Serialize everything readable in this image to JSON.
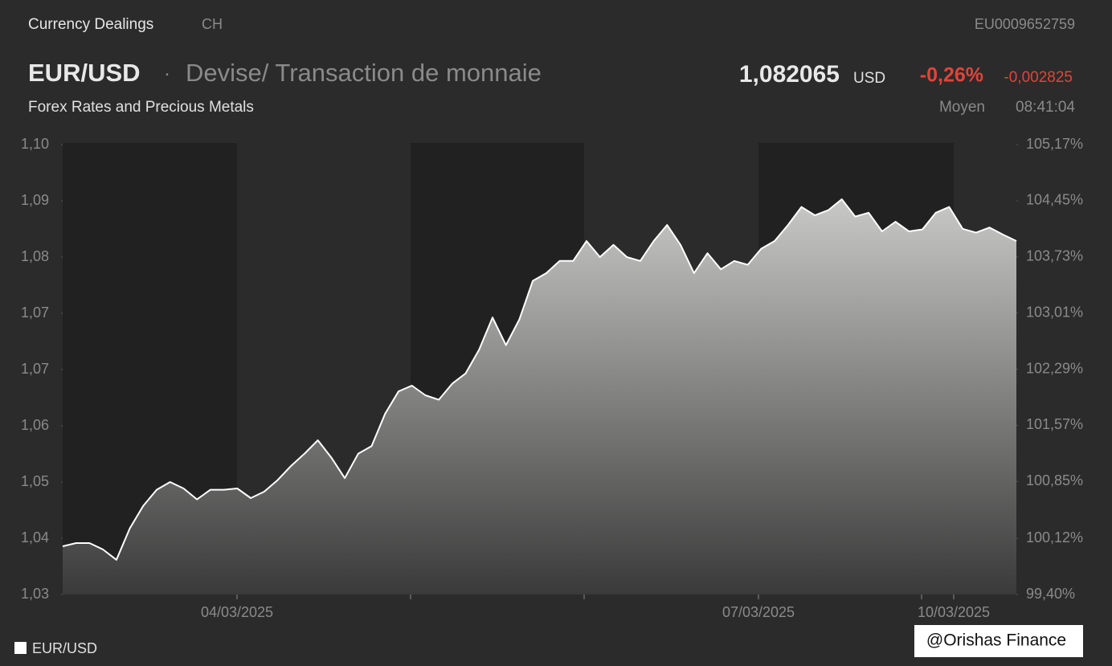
{
  "header": {
    "category": "Currency Dealings",
    "country": "CH",
    "isin": "EU0009652759",
    "symbol": "EUR/USD",
    "separator": "·",
    "description": "Devise/ Transaction de monnaie",
    "price": "1,082065",
    "currency": "USD",
    "change_pct": "-0,26%",
    "change_abs": "-0,002825",
    "market": "Forex Rates and Precious Metals",
    "price_type": "Moyen",
    "time": "08:41:04"
  },
  "watermark": "@Orishas Finance",
  "chart_data": {
    "type": "area",
    "series": [
      {
        "name": "EUR/USD",
        "color": "#ffffff",
        "values": [
          1.0375,
          1.038,
          1.038,
          1.037,
          1.0354,
          1.0403,
          1.0438,
          1.0463,
          1.0475,
          1.0465,
          1.0448,
          1.0463,
          1.0463,
          1.0465,
          1.045,
          1.046,
          1.0478,
          1.05,
          1.0519,
          1.054,
          1.0513,
          1.0481,
          1.0519,
          1.0531,
          1.0581,
          1.0616,
          1.0625,
          1.061,
          1.0603,
          1.0628,
          1.0644,
          1.0681,
          1.0731,
          1.0688,
          1.0728,
          1.0788,
          1.08,
          1.0819,
          1.0819,
          1.085,
          1.0825,
          1.0844,
          1.0825,
          1.0819,
          1.085,
          1.0875,
          1.0844,
          1.08,
          1.0831,
          1.0806,
          1.0819,
          1.0813,
          1.0838,
          1.085,
          1.0875,
          1.0903,
          1.089,
          1.0898,
          1.0915,
          1.0888,
          1.0894,
          1.0865,
          1.088,
          1.0865,
          1.0868,
          1.0894,
          1.0903,
          1.0869,
          1.0863,
          1.0871,
          1.086,
          1.085
        ]
      }
    ],
    "ylim": [
      1.03,
      1.1
    ],
    "yticks": [
      {
        "value": 1.03,
        "label": "1,03"
      },
      {
        "value": 1.03875,
        "label": "1,04"
      },
      {
        "value": 1.0475,
        "label": "1,05"
      },
      {
        "value": 1.05625,
        "label": "1,06"
      },
      {
        "value": 1.065,
        "label": "1,07"
      },
      {
        "value": 1.07375,
        "label": "1,07"
      },
      {
        "value": 1.0825,
        "label": "1,08"
      },
      {
        "value": 1.09125,
        "label": "1,09"
      },
      {
        "value": 1.1,
        "label": "1,10"
      }
    ],
    "y2lim": [
      99.4,
      105.17
    ],
    "y2ticks": [
      {
        "value": 99.4,
        "label": "99,40%"
      },
      {
        "value": 100.12,
        "label": "100,12%"
      },
      {
        "value": 100.85,
        "label": "100,85%"
      },
      {
        "value": 101.57,
        "label": "101,57%"
      },
      {
        "value": 102.29,
        "label": "102,29%"
      },
      {
        "value": 103.01,
        "label": "103,01%"
      },
      {
        "value": 103.73,
        "label": "103,73%"
      },
      {
        "value": 104.45,
        "label": "104,45%"
      },
      {
        "value": 105.17,
        "label": "105,17%"
      }
    ],
    "x_tick_labels": [
      "04/03/2025",
      "07/03/2025",
      "10/03/2025"
    ]
  }
}
